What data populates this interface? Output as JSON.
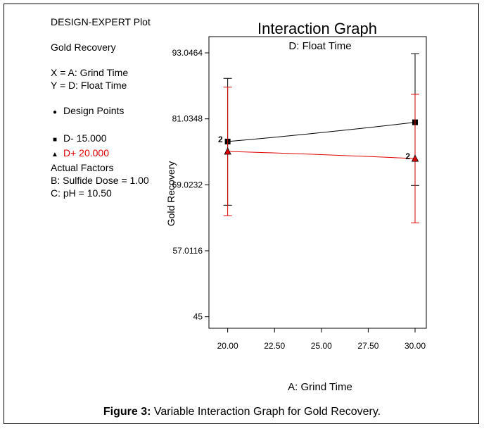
{
  "info": {
    "line1": "DESIGN-EXPERT Plot",
    "line2": "Gold Recovery",
    "line3": "X = A: Grind Time",
    "line4": "Y  = D: Float Time",
    "line5": "Design Points",
    "line6": "D- 15.000",
    "line7": "D+ 20.000",
    "line8": "Actual Factors",
    "line9": "B: Sulfide Dose = 1.00",
    "line10": "C: pH = 10.50"
  },
  "caption": {
    "label": "Figure 3:",
    "text": " Variable Interaction Graph for Gold Recovery."
  },
  "colors": {
    "series_low": "#000000",
    "series_high": "#e00000"
  },
  "chart_data": {
    "type": "line",
    "title": "Interaction Graph",
    "subtitle": "D: Float Time",
    "xlabel": "A: Grind Time",
    "ylabel": "Gold Recovery",
    "xlim": [
      19.0,
      30.6
    ],
    "ylim": [
      42.9,
      96.0
    ],
    "xticks": [
      "20.00",
      "22.50",
      "25.00",
      "27.50",
      "30.00"
    ],
    "xtick_values": [
      20,
      22.5,
      25,
      27.5,
      30
    ],
    "yticks": [
      "45",
      "57.0116",
      "69.0232",
      "81.0348",
      "93.0464"
    ],
    "ytick_values": [
      45,
      57.0116,
      69.0232,
      81.0348,
      93.0464
    ],
    "series": [
      {
        "name": "D- 15.000",
        "x": [
          20,
          30
        ],
        "y": [
          76.9,
          80.4
        ],
        "lsd_upper": [
          88.4,
          92.9
        ],
        "lsd_lower": [
          65.3,
          68.9
        ],
        "point_labels": [
          "2",
          ""
        ]
      },
      {
        "name": "D+ 20.000",
        "x": [
          20,
          30
        ],
        "y": [
          75.1,
          73.8
        ],
        "lsd_upper": [
          86.8,
          85.5
        ],
        "lsd_lower": [
          63.4,
          62.1
        ],
        "point_labels": [
          "",
          "2"
        ]
      }
    ]
  }
}
